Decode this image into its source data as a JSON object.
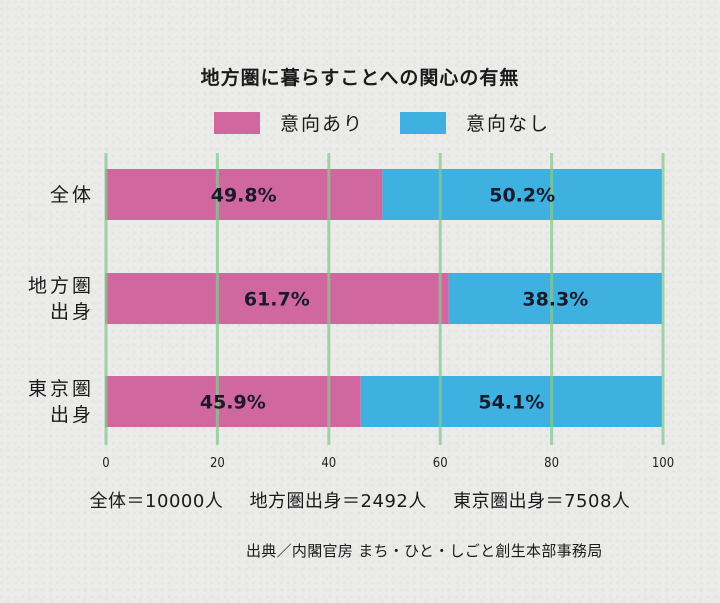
{
  "colors": {
    "yes": "#d0689f",
    "no": "#3fb1e0",
    "grid": "#86c98e",
    "background": "#ebebea"
  },
  "legend": {
    "yes_label": "意向あり",
    "no_label": "意向なし"
  },
  "counts": {
    "total": "全体＝10000人",
    "regional": "地方圏出身＝2492人",
    "tokyo": "東京圏出身＝7508人"
  },
  "source": "出典／内閣官房 まち・ひと・しごと創生本部事務局",
  "chart_data": {
    "type": "bar",
    "orientation": "horizontal",
    "stacked": true,
    "title": "地方圏に暮らすことへの関心の有無",
    "categories": [
      "全体",
      "地方圏出身",
      "東京圏出身"
    ],
    "category_display": [
      [
        "全体"
      ],
      [
        "地方圏",
        "出身"
      ],
      [
        "東京圏",
        "出身"
      ]
    ],
    "series": [
      {
        "name": "意向あり",
        "values": [
          49.8,
          61.7,
          45.9
        ],
        "labels": [
          "49.8%",
          "61.7%",
          "45.9%"
        ]
      },
      {
        "name": "意向なし",
        "values": [
          50.2,
          38.3,
          54.1
        ],
        "labels": [
          "50.2%",
          "38.3%",
          "54.1%"
        ]
      }
    ],
    "xlabel": "",
    "ylabel": "",
    "xlim": [
      0,
      100
    ],
    "xticks": [
      0,
      20,
      40,
      60,
      80,
      100
    ],
    "grid": true,
    "legend_position": "top-center"
  }
}
